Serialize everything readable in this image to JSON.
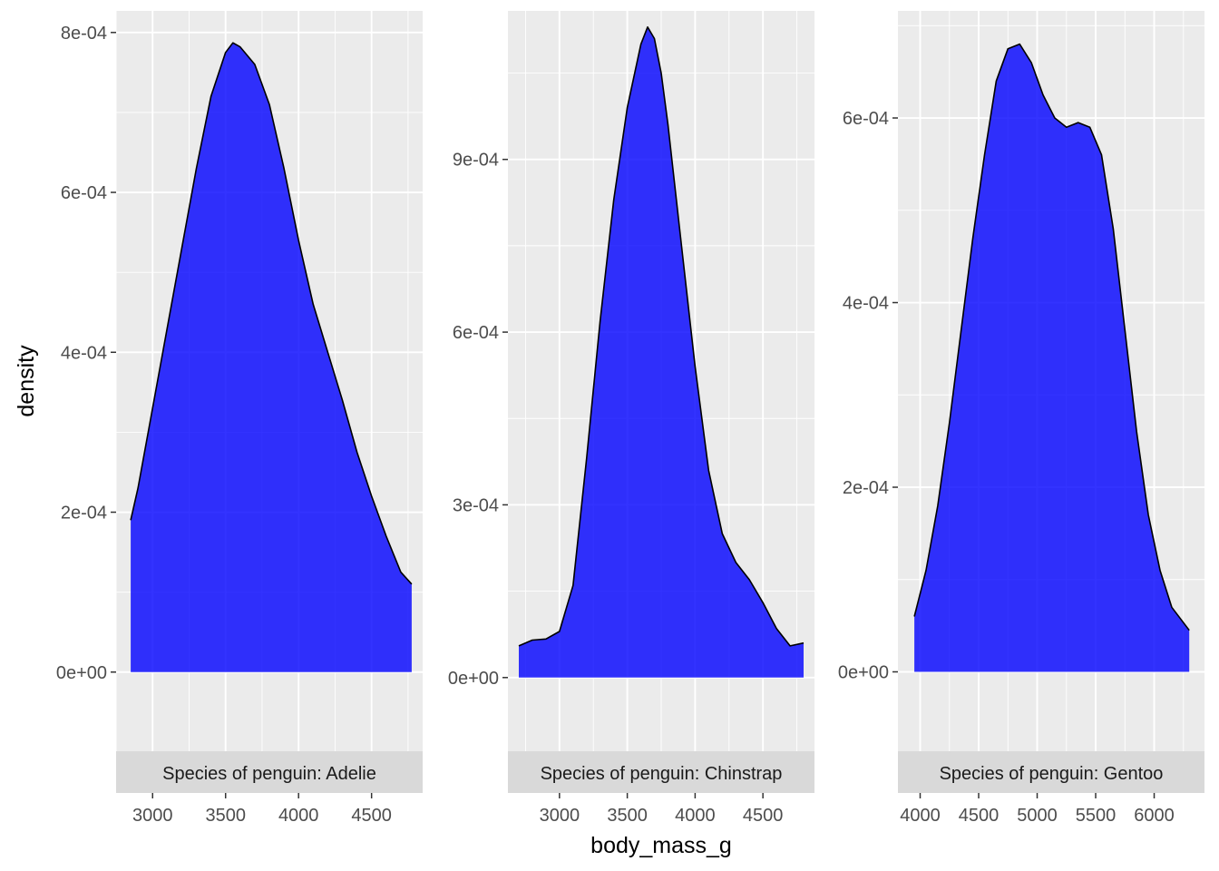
{
  "chart_data": {
    "type": "area",
    "xlabel": "body_mass_g",
    "ylabel": "density",
    "colors": {
      "fill": "#0000FF",
      "line": "#000000",
      "panel_bg": "#EBEBEB",
      "grid": "#FFFFFF",
      "strip_bg": "#D9D9D9"
    },
    "grid": true,
    "facets": [
      {
        "strip": "Species of penguin: Adelie",
        "xlim": [
          2750,
          4850
        ],
        "ylim": [
          -9.9e-05,
          0.000827
        ],
        "xticks": [
          3000,
          3500,
          4000,
          4500
        ],
        "xtick_labels": [
          "3000",
          "3500",
          "4000",
          "4500"
        ],
        "yticks": [
          0,
          0.0002,
          0.0004,
          0.0006,
          0.0008
        ],
        "ytick_labels": [
          "0e+00",
          "2e-04",
          "4e-04",
          "6e-04",
          "8e-04"
        ],
        "x": [
          2850,
          2900,
          3000,
          3100,
          3200,
          3300,
          3400,
          3500,
          3550,
          3600,
          3700,
          3800,
          3900,
          4000,
          4100,
          4200,
          4300,
          4400,
          4500,
          4600,
          4700,
          4775
        ],
        "y": [
          0.00019,
          0.00023,
          0.00033,
          0.00043,
          0.00053,
          0.00063,
          0.00072,
          0.000775,
          0.000787,
          0.000782,
          0.00076,
          0.00071,
          0.00063,
          0.00054,
          0.00046,
          0.0004,
          0.00034,
          0.000275,
          0.00022,
          0.00017,
          0.000125,
          0.00011
        ]
      },
      {
        "strip": "Species of penguin: Chinstrap",
        "xlim": [
          2620,
          4880
        ],
        "ylim": [
          -0.000128,
          0.001158
        ],
        "xticks": [
          3000,
          3500,
          4000,
          4500
        ],
        "xtick_labels": [
          "3000",
          "3500",
          "4000",
          "4500"
        ],
        "yticks": [
          0,
          0.0003,
          0.0006,
          0.0009
        ],
        "ytick_labels": [
          "0e+00",
          "3e-04",
          "6e-04",
          "9e-04"
        ],
        "x": [
          2700,
          2800,
          2900,
          3000,
          3100,
          3200,
          3300,
          3400,
          3500,
          3600,
          3650,
          3700,
          3750,
          3800,
          3900,
          4000,
          4100,
          4200,
          4300,
          4400,
          4500,
          4600,
          4700,
          4800
        ],
        "y": [
          5.5e-05,
          6.5e-05,
          6.7e-05,
          8e-05,
          0.00016,
          0.00038,
          0.00062,
          0.00083,
          0.00099,
          0.0011,
          0.00113,
          0.00111,
          0.00105,
          0.00096,
          0.00075,
          0.00054,
          0.00036,
          0.00025,
          0.0002,
          0.00017,
          0.00013,
          8.5e-05,
          5.5e-05,
          6e-05
        ]
      },
      {
        "strip": "Species of penguin: Gentoo",
        "xlim": [
          3810,
          6430
        ],
        "ylim": [
          -8.6e-05,
          0.000716
        ],
        "xticks": [
          4000,
          4500,
          5000,
          5500,
          6000
        ],
        "xtick_labels": [
          "4000",
          "4500",
          "5000",
          "5500",
          "6000"
        ],
        "yticks": [
          0,
          0.0002,
          0.0004,
          0.0006
        ],
        "ytick_labels": [
          "0e+00",
          "2e-04",
          "4e-04",
          "6e-04"
        ],
        "x": [
          3950,
          4050,
          4150,
          4250,
          4350,
          4450,
          4550,
          4650,
          4750,
          4850,
          4950,
          5050,
          5150,
          5250,
          5350,
          5450,
          5550,
          5650,
          5750,
          5850,
          5950,
          6050,
          6150,
          6300
        ],
        "y": [
          6e-05,
          0.00011,
          0.00018,
          0.00027,
          0.00037,
          0.00047,
          0.00056,
          0.00064,
          0.000675,
          0.00068,
          0.00066,
          0.000625,
          0.0006,
          0.00059,
          0.000595,
          0.00059,
          0.00056,
          0.00048,
          0.00037,
          0.00026,
          0.00017,
          0.00011,
          7e-05,
          4.5e-05
        ]
      }
    ]
  }
}
